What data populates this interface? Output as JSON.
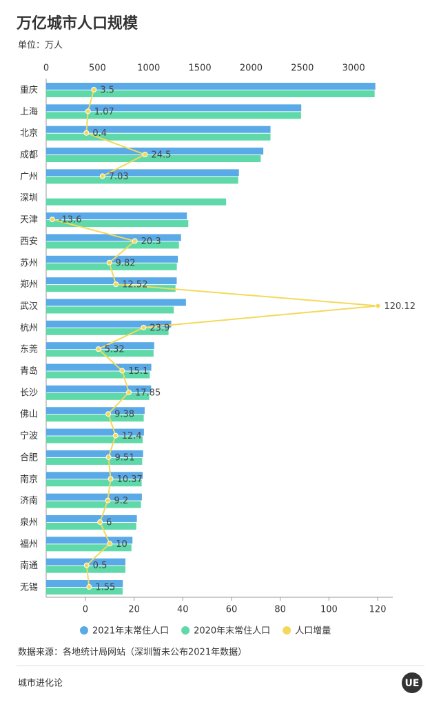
{
  "chart_data": {
    "type": "bar",
    "orientation": "horizontal",
    "title": "万亿城市人口规模",
    "subtitle": "单位：万人",
    "categories": [
      "重庆",
      "上海",
      "北京",
      "成都",
      "广州",
      "深圳",
      "天津",
      "西安",
      "苏州",
      "郑州",
      "武汉",
      "杭州",
      "东莞",
      "青岛",
      "长沙",
      "佛山",
      "宁波",
      "合肥",
      "南京",
      "济南",
      "泉州",
      "福州",
      "南通",
      "无锡"
    ],
    "series": [
      {
        "name": "2021年末常住人口",
        "color": "#5aaae8",
        "values": [
          3212,
          2489,
          2189,
          2119,
          1881,
          null,
          1373,
          1316,
          1285,
          1274,
          1364,
          1220,
          1054,
          1026,
          1024,
          961,
          954,
          946,
          942,
          934,
          885,
          842,
          773,
          748
        ]
      },
      {
        "name": "2020年末常住人口",
        "color": "#5fd9a9",
        "values": [
          3205,
          2487,
          2189,
          2094,
          1874,
          1756,
          1387,
          1296,
          1275,
          1262,
          1245,
          1194,
          1048,
          1011,
          1006,
          952,
          942,
          937,
          932,
          925,
          879,
          832,
          773,
          746
        ]
      },
      {
        "name": "人口增量",
        "color": "#f3d95a",
        "type": "line",
        "axis": "x2",
        "values": [
          3.5,
          1.07,
          0.4,
          24.5,
          7.03,
          null,
          -13.6,
          20.3,
          9.82,
          12.52,
          120.12,
          23.9,
          5.32,
          15.1,
          17.85,
          9.38,
          12.4,
          9.51,
          10.37,
          9.2,
          6,
          10,
          0.5,
          1.55
        ]
      }
    ],
    "xlim": [
      0,
      3382
    ],
    "xticks": [
      0,
      500,
      1000,
      1500,
      2000,
      2500,
      3000
    ],
    "x2lim": [
      -16.1,
      126.2
    ],
    "x2ticks": [
      0,
      20,
      40,
      60,
      80,
      100,
      120
    ],
    "legend": "bottom",
    "source": "数据来源：各地统计局网站（深圳暂未公布2021年数据）",
    "footer": "城市进化论",
    "logo": "UE"
  }
}
